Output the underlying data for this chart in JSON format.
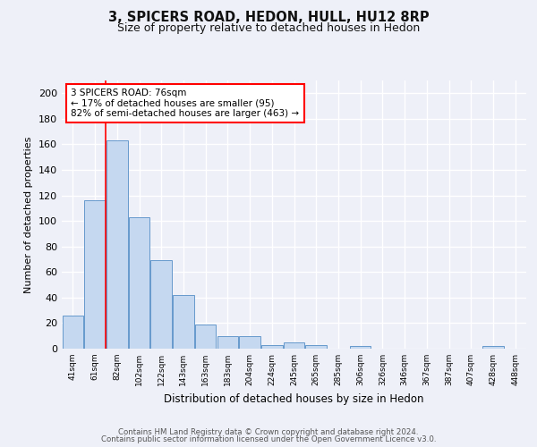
{
  "title1": "3, SPICERS ROAD, HEDON, HULL, HU12 8RP",
  "title2": "Size of property relative to detached houses in Hedon",
  "xlabel": "Distribution of detached houses by size in Hedon",
  "ylabel": "Number of detached properties",
  "categories": [
    "41sqm",
    "61sqm",
    "82sqm",
    "102sqm",
    "122sqm",
    "143sqm",
    "163sqm",
    "183sqm",
    "204sqm",
    "224sqm",
    "245sqm",
    "265sqm",
    "285sqm",
    "306sqm",
    "326sqm",
    "346sqm",
    "367sqm",
    "387sqm",
    "407sqm",
    "428sqm",
    "448sqm"
  ],
  "values": [
    26,
    116,
    163,
    103,
    69,
    42,
    19,
    10,
    10,
    3,
    5,
    3,
    0,
    2,
    0,
    0,
    0,
    0,
    0,
    2,
    0
  ],
  "bar_color": "#c5d8f0",
  "bar_edge_color": "#6699cc",
  "vline_x": 1.5,
  "vline_color": "red",
  "annotation_line1": "3 SPICERS ROAD: 76sqm",
  "annotation_line2": "← 17% of detached houses are smaller (95)",
  "annotation_line3": "82% of semi-detached houses are larger (463) →",
  "annotation_box_color": "white",
  "annotation_box_edge_color": "red",
  "ylim": [
    0,
    210
  ],
  "yticks": [
    0,
    20,
    40,
    60,
    80,
    100,
    120,
    140,
    160,
    180,
    200
  ],
  "footer1": "Contains HM Land Registry data © Crown copyright and database right 2024.",
  "footer2": "Contains public sector information licensed under the Open Government Licence v3.0.",
  "bg_color": "#eef0f8",
  "plot_bg_color": "#eef0f8"
}
